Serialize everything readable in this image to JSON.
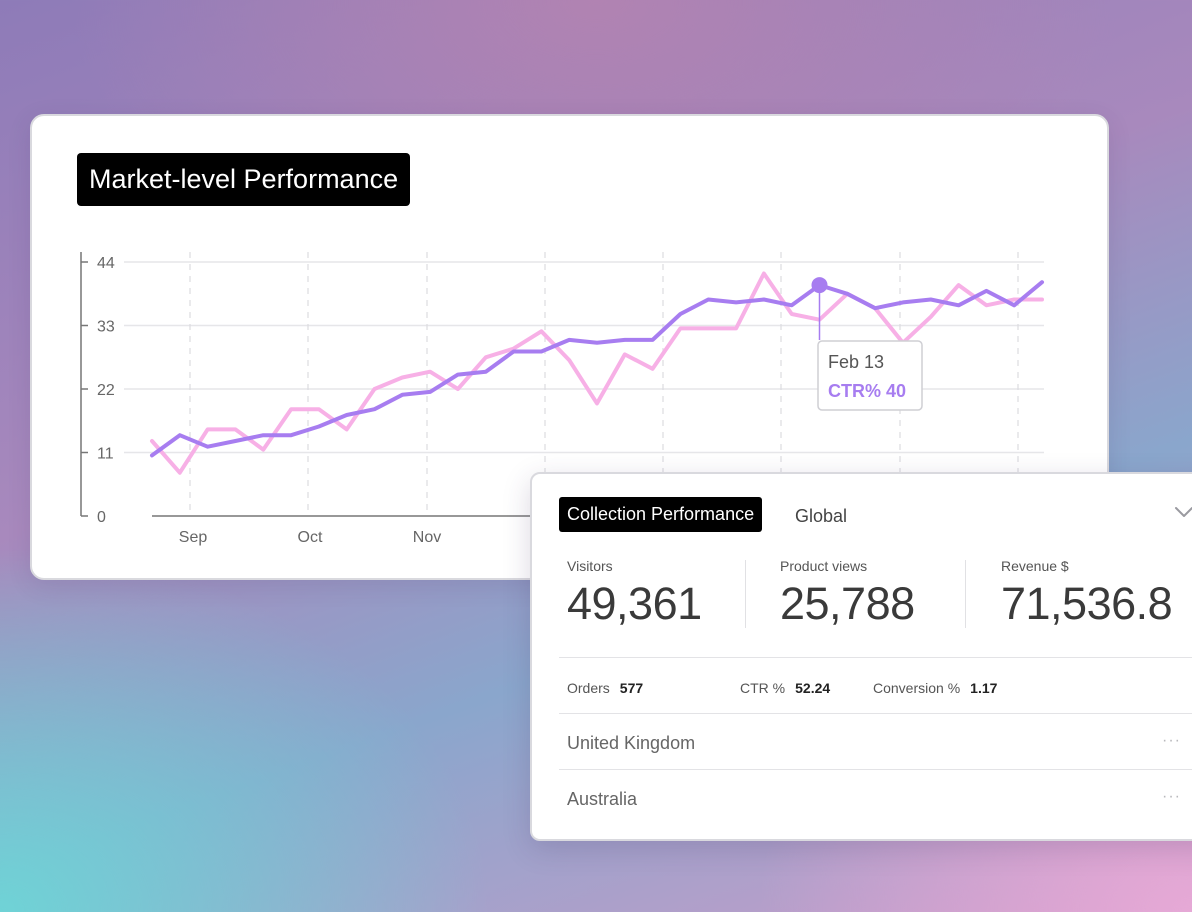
{
  "market_card": {
    "title": "Market-level Performance"
  },
  "tooltip": {
    "date": "Feb 13",
    "label": "CTR% 40"
  },
  "chart_data": {
    "type": "line",
    "title": "Market-level Performance",
    "xlabel": "",
    "ylabel": "",
    "ylim": [
      0,
      44
    ],
    "y_ticks": [
      0,
      11,
      22,
      33,
      44
    ],
    "x_tick_labels": [
      "Sep",
      "Oct",
      "Nov"
    ],
    "grid": true,
    "series": [
      {
        "color": "#a77df0",
        "values": [
          10.5,
          14,
          12,
          13,
          14,
          14,
          15.5,
          17.5,
          18.5,
          21,
          21.5,
          24.5,
          25,
          28.5,
          28.5,
          30.5,
          30,
          30.5,
          30.5,
          35,
          37.5,
          37,
          37.5,
          36.5,
          40,
          38.5,
          36,
          37,
          37.5,
          36.5,
          39,
          36.5,
          40.5
        ]
      },
      {
        "color": "#f7b0e6",
        "values": [
          13,
          7.5,
          15,
          15,
          11.5,
          18.5,
          18.5,
          15,
          22,
          24,
          25,
          22,
          27.5,
          29,
          32,
          27,
          19.5,
          28,
          25.5,
          32.5,
          32.5,
          32.5,
          42,
          35,
          34,
          38.5,
          36,
          30,
          34.5,
          40,
          36.5,
          37.5,
          37.5
        ]
      }
    ],
    "highlight": {
      "date": "Feb 13",
      "series": "CTR%",
      "value": 40
    }
  },
  "collection_card": {
    "title": "Collection Performance",
    "scope": "Global",
    "metrics": [
      {
        "label": "Visitors",
        "value": "49,361"
      },
      {
        "label": "Product views",
        "value": "25,788"
      },
      {
        "label": "Revenue $",
        "value": "71,536.8"
      }
    ],
    "stats": [
      {
        "label": "Orders",
        "value": "577"
      },
      {
        "label": "CTR %",
        "value": "52.24"
      },
      {
        "label": "Conversion %",
        "value": "1.17"
      }
    ],
    "rows": [
      {
        "label": "United Kingdom"
      },
      {
        "label": "Australia"
      }
    ],
    "more_glyph": "···"
  }
}
